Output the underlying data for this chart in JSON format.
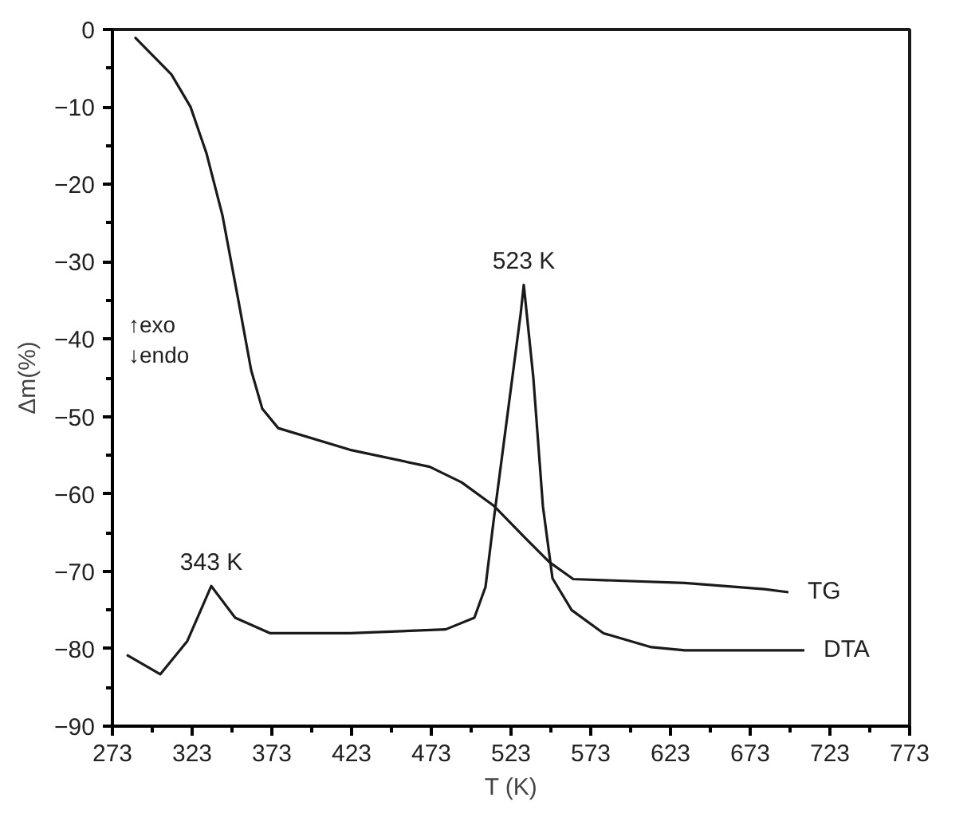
{
  "chart_data": {
    "type": "line",
    "xlabel": "T (K)",
    "ylabel": "Δm(%)",
    "xlim": [
      273,
      773
    ],
    "ylim": [
      -90,
      0
    ],
    "xticks": [
      273,
      {
        "value": 298,
        "label": null
      },
      323,
      {
        "value": 348,
        "label": null
      },
      373,
      {
        "value": 398,
        "label": null
      },
      423,
      {
        "value": 448,
        "label": null
      },
      473,
      {
        "value": 498,
        "label": null
      },
      523,
      {
        "value": 548,
        "label": null
      },
      573,
      {
        "value": 598,
        "label": null
      },
      623,
      {
        "value": 648,
        "label": null
      },
      673,
      {
        "value": 698,
        "label": null
      },
      723,
      {
        "value": 748,
        "label": null
      },
      773
    ],
    "yticks": [
      -90,
      {
        "value": -85,
        "label": null
      },
      -80,
      {
        "value": -75,
        "label": null
      },
      -70,
      {
        "value": -65,
        "label": null
      },
      -60,
      {
        "value": -55,
        "label": null
      },
      -50,
      {
        "value": -45,
        "label": null
      },
      -40,
      {
        "value": -35,
        "label": null
      },
      -30,
      {
        "value": -25,
        "label": null
      },
      -20,
      {
        "value": -15,
        "label": null
      },
      -10,
      {
        "value": -5,
        "label": null
      },
      0
    ],
    "grid": false,
    "marker": "none",
    "line_style": "solid",
    "series": [
      {
        "name": "TG",
        "color": "#1a1a1a",
        "x": [
          287,
          310,
          322,
          332,
          342,
          352,
          360,
          367,
          377,
          422,
          472,
          492,
          512,
          532,
          547,
          562,
          632,
          682,
          697
        ],
        "values": [
          -1,
          -5.8,
          -10,
          -16,
          -24,
          -35,
          -44,
          -49,
          -51.5,
          -54.3,
          -56.5,
          -58.5,
          -61.5,
          -65.7,
          -68.8,
          -71,
          -71.5,
          -72.3,
          -72.7
        ]
      },
      {
        "name": "DTA",
        "color": "#1a1a1a",
        "x": [
          282,
          303,
          320,
          335,
          350,
          372,
          422,
          482,
          500,
          507,
          512,
          520,
          529,
          531,
          537,
          543,
          549,
          561,
          581,
          611,
          632,
          707
        ],
        "values": [
          -80.8,
          -83.3,
          -79,
          -71.9,
          -76,
          -78,
          -78,
          -77.5,
          -76,
          -72,
          -63.6,
          -51,
          -36.8,
          -33,
          -45,
          -61.6,
          -70.9,
          -75,
          -78,
          -79.8,
          -80.2,
          -80.2
        ]
      }
    ],
    "annotations": [
      {
        "text": "523 K",
        "x": 531,
        "y": -33
      },
      {
        "text": "343 K",
        "x": 335,
        "y": -71.9
      },
      "↑exo\n↓endo"
    ]
  }
}
